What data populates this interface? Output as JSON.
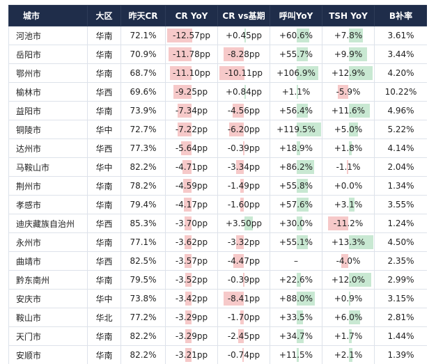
{
  "headers": [
    "城市",
    "大区",
    "昨天CR",
    "CR YoY",
    "CR vs基期",
    "呼叫YoY",
    "TSH YoY",
    "B补率"
  ],
  "colors": {
    "header_bg": "#1f2d4a",
    "negative_bar": "#f6c9c9",
    "positive_bar": "#c8e8d2"
  },
  "rows": [
    {
      "city": "河池市",
      "region": "华南",
      "cr": "72.1%",
      "cr_yoy": "-12.57pp",
      "cr_vs": "+0.45pp",
      "call_yoy": "+60.6%",
      "tsh_yoy": "+7.8%",
      "b_rate": "3.61%"
    },
    {
      "city": "岳阳市",
      "region": "华南",
      "cr": "70.9%",
      "cr_yoy": "-11.78pp",
      "cr_vs": "-8.28pp",
      "call_yoy": "+55.7%",
      "tsh_yoy": "+9.9%",
      "b_rate": "3.44%"
    },
    {
      "city": "鄂州市",
      "region": "华南",
      "cr": "68.7%",
      "cr_yoy": "-11.10pp",
      "cr_vs": "-10.11pp",
      "call_yoy": "+106.9%",
      "tsh_yoy": "+12.9%",
      "b_rate": "4.20%"
    },
    {
      "city": "榆林市",
      "region": "华西",
      "cr": "69.6%",
      "cr_yoy": "-9.25pp",
      "cr_vs": "+0.84pp",
      "call_yoy": "+1.1%",
      "tsh_yoy": "-5.9%",
      "b_rate": "10.22%"
    },
    {
      "city": "益阳市",
      "region": "华南",
      "cr": "73.9%",
      "cr_yoy": "-7.34pp",
      "cr_vs": "-4.56pp",
      "call_yoy": "+56.4%",
      "tsh_yoy": "+11.6%",
      "b_rate": "4.96%"
    },
    {
      "city": "铜陵市",
      "region": "华中",
      "cr": "72.7%",
      "cr_yoy": "-7.22pp",
      "cr_vs": "-6.20pp",
      "call_yoy": "+119.5%",
      "tsh_yoy": "+5.0%",
      "b_rate": "5.22%"
    },
    {
      "city": "达州市",
      "region": "华西",
      "cr": "77.3%",
      "cr_yoy": "-5.64pp",
      "cr_vs": "-0.39pp",
      "call_yoy": "+18.9%",
      "tsh_yoy": "+1.8%",
      "b_rate": "4.14%"
    },
    {
      "city": "马鞍山市",
      "region": "华中",
      "cr": "82.2%",
      "cr_yoy": "-4.71pp",
      "cr_vs": "-3.34pp",
      "call_yoy": "+86.2%",
      "tsh_yoy": "-1.1%",
      "b_rate": "2.04%"
    },
    {
      "city": "荆州市",
      "region": "华南",
      "cr": "78.2%",
      "cr_yoy": "-4.59pp",
      "cr_vs": "-1.49pp",
      "call_yoy": "+55.8%",
      "tsh_yoy": "+0.0%",
      "b_rate": "1.34%"
    },
    {
      "city": "孝感市",
      "region": "华南",
      "cr": "79.4%",
      "cr_yoy": "-4.17pp",
      "cr_vs": "-1.60pp",
      "call_yoy": "+57.6%",
      "tsh_yoy": "+3.1%",
      "b_rate": "3.55%"
    },
    {
      "city": "迪庆藏族自治州",
      "region": "华西",
      "cr": "85.3%",
      "cr_yoy": "-3.70pp",
      "cr_vs": "+3.50pp",
      "call_yoy": "+30.0%",
      "tsh_yoy": "-11.2%",
      "b_rate": "1.24%"
    },
    {
      "city": "永州市",
      "region": "华南",
      "cr": "77.1%",
      "cr_yoy": "-3.62pp",
      "cr_vs": "-3.32pp",
      "call_yoy": "+55.1%",
      "tsh_yoy": "+13.3%",
      "b_rate": "4.50%"
    },
    {
      "city": "曲靖市",
      "region": "华西",
      "cr": "82.5%",
      "cr_yoy": "-3.57pp",
      "cr_vs": "-4.47pp",
      "call_yoy": "–",
      "tsh_yoy": "-4.0%",
      "b_rate": "2.35%"
    },
    {
      "city": "黔东南州",
      "region": "华南",
      "cr": "79.5%",
      "cr_yoy": "-3.52pp",
      "cr_vs": "-0.39pp",
      "call_yoy": "+22.6%",
      "tsh_yoy": "+12.0%",
      "b_rate": "2.99%"
    },
    {
      "city": "安庆市",
      "region": "华中",
      "cr": "73.8%",
      "cr_yoy": "-3.42pp",
      "cr_vs": "-8.41pp",
      "call_yoy": "+88.0%",
      "tsh_yoy": "+0.9%",
      "b_rate": "3.15%"
    },
    {
      "city": "鞍山市",
      "region": "华北",
      "cr": "77.2%",
      "cr_yoy": "-3.29pp",
      "cr_vs": "-1.70pp",
      "call_yoy": "+33.5%",
      "tsh_yoy": "+6.0%",
      "b_rate": "2.81%"
    },
    {
      "city": "天门市",
      "region": "华南",
      "cr": "82.2%",
      "cr_yoy": "-3.29pp",
      "cr_vs": "-2.45pp",
      "call_yoy": "+34.7%",
      "tsh_yoy": "+1.7%",
      "b_rate": "1.44%"
    },
    {
      "city": "安顺市",
      "region": "华南",
      "cr": "82.2%",
      "cr_yoy": "-3.21pp",
      "cr_vs": "-0.74pp",
      "call_yoy": "+11.5%",
      "tsh_yoy": "+2.1%",
      "b_rate": "1.39%"
    }
  ]
}
